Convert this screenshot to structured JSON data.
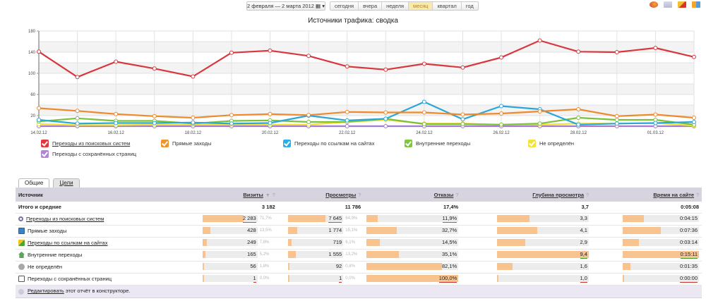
{
  "toolbar": {
    "date_range": "2 февраля — 2 марта 2012",
    "periods": [
      {
        "label": "сегодня",
        "active": false
      },
      {
        "label": "вчера",
        "active": false
      },
      {
        "label": "неделя",
        "active": false
      },
      {
        "label": "месяц",
        "active": true
      },
      {
        "label": "квартал",
        "active": false
      },
      {
        "label": "год",
        "active": false
      }
    ],
    "export_icons": [
      "firefox-icon",
      "email-icon",
      "pdf-icon",
      "excel-icon"
    ]
  },
  "chart_data": {
    "type": "line",
    "title": "Источники трафика: сводка",
    "xlabel": "",
    "ylabel": "",
    "ylim": [
      0,
      180
    ],
    "yticks": [
      20,
      60,
      100,
      140,
      180
    ],
    "grid": true,
    "x": [
      "14.02.12",
      "15.02.12",
      "16.02.12",
      "17.02.12",
      "18.02.12",
      "19.02.12",
      "20.02.12",
      "21.02.12",
      "22.02.12",
      "23.02.12",
      "24.02.12",
      "25.02.12",
      "26.02.12",
      "27.02.12",
      "28.02.12",
      "29.02.12",
      "01.03.12",
      "02.03.12"
    ],
    "xtick_labels": [
      "14.02.12",
      "16.02.12",
      "18.02.12",
      "20.02.12",
      "22.02.12",
      "24.02.12",
      "26.02.12",
      "28.02.12",
      "01.03.12"
    ],
    "legend_position": "bottom",
    "series": [
      {
        "name": "Переходы из поисковых систем",
        "color": "#d7373d",
        "values": [
          141,
          93,
          122,
          109,
          94,
          139,
          143,
          133,
          113,
          107,
          118,
          111,
          130,
          162,
          141,
          140,
          148,
          131
        ]
      },
      {
        "name": "Прямые заходы",
        "color": "#ef8a2c",
        "values": [
          34,
          29,
          23,
          19,
          16,
          21,
          23,
          21,
          27,
          26,
          26,
          22,
          24,
          28,
          32,
          19,
          22,
          16
        ]
      },
      {
        "name": "Переходы по ссылкам на сайтах",
        "color": "#2aa7d8",
        "values": [
          12,
          5,
          6,
          6,
          7,
          5,
          6,
          20,
          11,
          14,
          46,
          13,
          38,
          32,
          3,
          5,
          6,
          8
        ]
      },
      {
        "name": "Внутренние переходы",
        "color": "#7cc13a",
        "values": [
          9,
          15,
          10,
          10,
          5,
          10,
          11,
          8,
          8,
          14,
          4,
          4,
          3,
          5,
          16,
          12,
          12,
          3
        ]
      },
      {
        "name": "Не определён",
        "color": "#f0e032",
        "values": [
          4,
          2,
          2,
          3,
          3,
          3,
          3,
          3,
          8,
          12,
          5,
          5,
          3,
          3,
          5,
          5,
          6,
          1
        ]
      },
      {
        "name": "Переходы с сохранённых страниц",
        "color": "#a678d0",
        "values": [
          0,
          0,
          0,
          0,
          0,
          0,
          0,
          0,
          0,
          0,
          0,
          0,
          0,
          0,
          0,
          0,
          0,
          0
        ]
      }
    ]
  },
  "legend": [
    {
      "label": "Переходы из поисковых систем",
      "color": "#e0383e",
      "underlined": true
    },
    {
      "label": "Прямые заходы",
      "color": "#f0952e",
      "underlined": false
    },
    {
      "label": "Переходы по ссылкам на сайтах",
      "color": "#2ab0e6",
      "underlined": false
    },
    {
      "label": "Внутренние переходы",
      "color": "#7cc83a",
      "underlined": false
    },
    {
      "label": "Не определён",
      "color": "#f4e23a",
      "underlined": false
    },
    {
      "label": "Переходы с сохранённых страниц",
      "color": "#b085dc",
      "underlined": false
    }
  ],
  "tabs": [
    {
      "label": "Общие",
      "active": true
    },
    {
      "label": "Цели",
      "active": false
    }
  ],
  "table": {
    "columns": {
      "source": "Источник",
      "visits": "Визиты",
      "views": "Просмотры",
      "bounces": "Отказы",
      "depth": "Глубина просмотра",
      "time": "Время на сайте"
    },
    "sort_glyph": "▼",
    "help_glyph": "?",
    "total": {
      "label": "Итого и средние",
      "visits": "3 182",
      "views": "11 786",
      "bounces": "17,4%",
      "depth": "3,7",
      "time": "0:05:08"
    },
    "rows": [
      {
        "icon": "search-icon",
        "label": "Переходы из поисковых систем",
        "link": true,
        "visits": "2 283",
        "visits_pct": "71,7%",
        "visits_share": 0.717,
        "views": "7 645",
        "views_pct": "64,9%",
        "views_share": 0.649,
        "bounces": "11,9%",
        "bounces_share": 0.119,
        "depth": "3,3",
        "depth_share": 0.351,
        "time": "0:04:15",
        "time_share": 0.28
      },
      {
        "icon": "direct-icon",
        "label": "Прямые заходы",
        "link": false,
        "visits": "428",
        "visits_pct": "13,5%",
        "visits_share": 0.135,
        "views": "1 774",
        "views_pct": "15,1%",
        "views_share": 0.151,
        "bounces": "32,7%",
        "bounces_share": 0.327,
        "depth": "4,1",
        "depth_share": 0.436,
        "time": "0:07:36",
        "time_share": 0.5
      },
      {
        "icon": "link-icon",
        "label": "Переходы по ссылкам на сайтах",
        "link": true,
        "visits": "249",
        "visits_pct": "7,8%",
        "visits_share": 0.078,
        "views": "719",
        "views_pct": "6,1%",
        "views_share": 0.061,
        "bounces": "14,5%",
        "bounces_share": 0.145,
        "depth": "2,9",
        "depth_share": 0.308,
        "time": "0:03:14",
        "time_share": 0.21
      },
      {
        "icon": "home-icon",
        "label": "Внутренние переходы",
        "link": false,
        "visits": "165",
        "visits_pct": "5,2%",
        "visits_share": 0.052,
        "views": "1 555",
        "views_pct": "13,2%",
        "views_share": 0.132,
        "bounces": "35,1%",
        "bounces_share": 0.351,
        "depth": "9,4",
        "depth_share": 1.0,
        "depth_mark": "green",
        "time": "0:15:11",
        "time_share": 1.0,
        "time_mark": "green"
      },
      {
        "icon": "unknown-icon",
        "label": "Не определён",
        "link": false,
        "visits": "56",
        "visits_pct": "1,8%",
        "visits_share": 0.018,
        "views": "92",
        "views_pct": "0,8%",
        "views_share": 0.008,
        "bounces": "82,1%",
        "bounces_share": 0.821,
        "depth": "1,6",
        "depth_share": 0.17,
        "time": "0:01:35",
        "time_share": 0.1
      },
      {
        "icon": "saved-page-icon",
        "label": "Переходы с сохранённых страниц",
        "link": false,
        "visits": "1",
        "visits_pct": "0,0%",
        "visits_share": 0.0,
        "visits_mark": "red",
        "views": "1",
        "views_pct": "0,0%",
        "views_share": 0.0,
        "views_mark": "red",
        "bounces": "100,0%",
        "bounces_share": 1.0,
        "bounces_mark": "red",
        "depth": "1,0",
        "depth_share": 0.0,
        "depth_mark": "red",
        "time": "0:00:00",
        "time_share": 0.0,
        "time_mark": "red"
      }
    ],
    "row0_marks": {
      "visits": "green",
      "views": "green",
      "bounces": "green"
    },
    "footer": {
      "link": "Редактировать",
      "text": " этот отчёт в конструкторе."
    }
  }
}
